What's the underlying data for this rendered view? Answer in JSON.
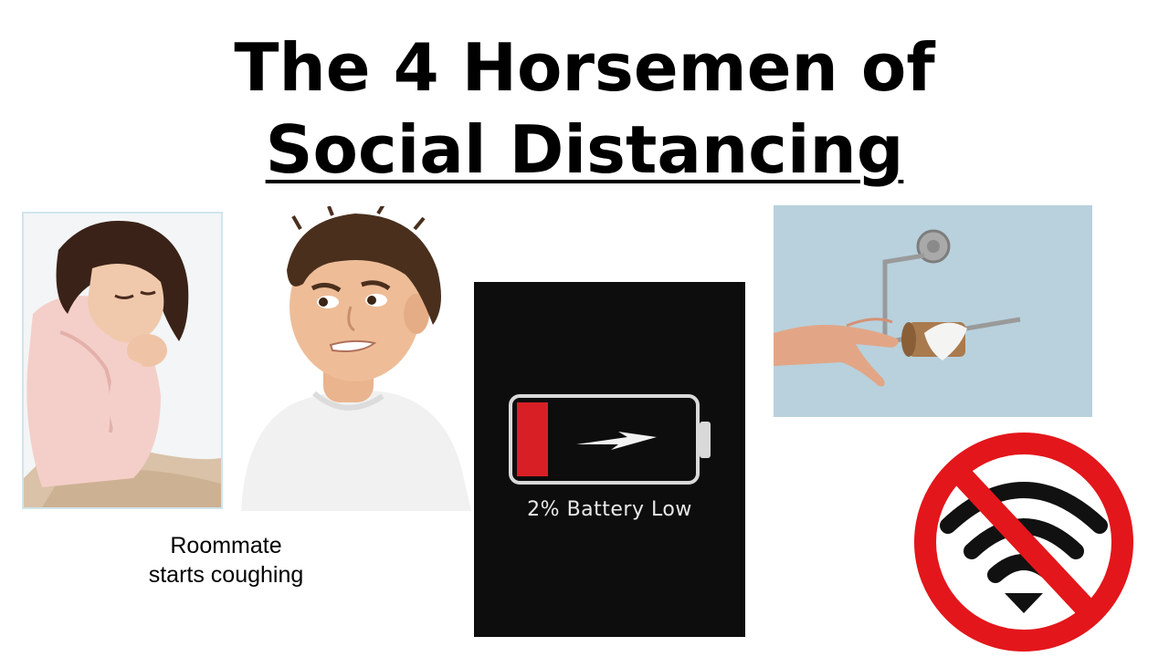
{
  "title": {
    "line1": "The 4 Horsemen of",
    "line2": "Social Distancing"
  },
  "panels": {
    "roommate": {
      "caption_line1": "Roommate",
      "caption_line2": "starts coughing"
    },
    "battery": {
      "label": "2% Battery Low",
      "level_percent": 2,
      "colors": {
        "background": "#0d0d0d",
        "charge": "#d81f26",
        "outline": "#d9d9d9"
      },
      "icon": "lightning-bolt-icon"
    },
    "toilet_paper": {
      "icon": "empty-toilet-paper-roll-icon"
    },
    "no_wifi": {
      "icon": "no-wifi-icon",
      "colors": {
        "ring": "#e3161b",
        "wifi": "#111111"
      }
    }
  }
}
